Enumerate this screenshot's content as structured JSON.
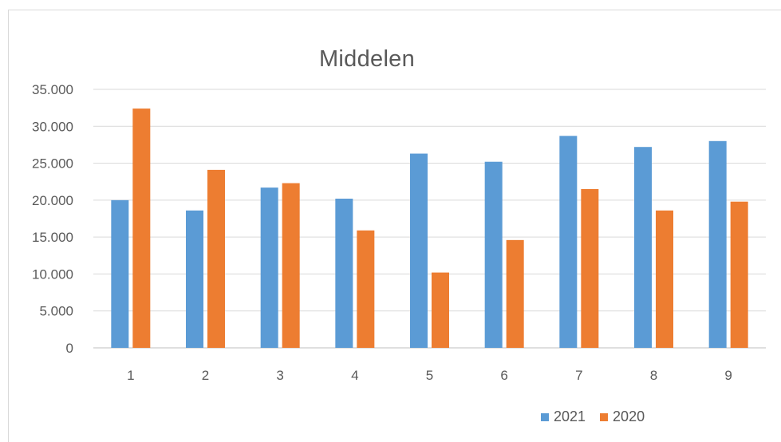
{
  "chart_data": {
    "type": "bar",
    "title": "Middelen",
    "categories": [
      "1",
      "2",
      "3",
      "4",
      "5",
      "6",
      "7",
      "8",
      "9"
    ],
    "series": [
      {
        "name": "2021",
        "color": "#5b9bd5",
        "values": [
          20000,
          18600,
          21700,
          20200,
          26300,
          25200,
          28700,
          27200,
          28000
        ]
      },
      {
        "name": "2020",
        "color": "#ed7d31",
        "values": [
          32400,
          24100,
          22300,
          15900,
          10200,
          14600,
          21500,
          18600,
          19800
        ]
      }
    ],
    "ylim": [
      0,
      35000
    ],
    "yticks": [
      "0",
      "5.000",
      "10.000",
      "15.000",
      "20.000",
      "25.000",
      "30.000",
      "35.000"
    ],
    "grid": true,
    "legend_position": "bottom-right",
    "xlabel": "",
    "ylabel": ""
  }
}
